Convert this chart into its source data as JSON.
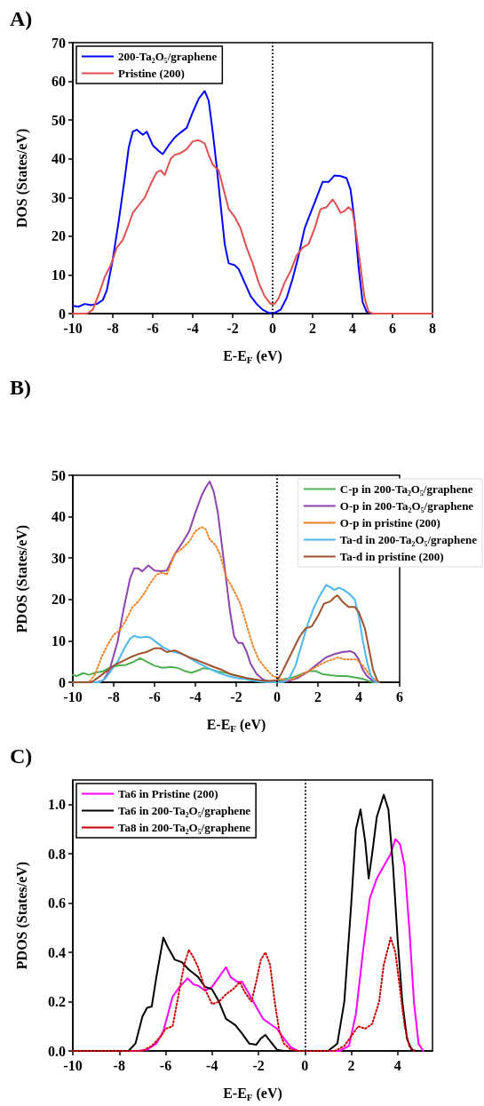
{
  "chart_data": [
    {
      "type": "line",
      "title": "A)",
      "xlabel": "E-E$_{F}$ (eV)",
      "ylabel": "DOS (States/eV)",
      "xlim": [
        -10,
        8
      ],
      "xticks": [
        -10,
        -8,
        -6,
        -4,
        -2,
        0,
        2,
        4,
        6,
        8
      ],
      "ylim": [
        0,
        70
      ],
      "yticks": [
        0,
        10,
        20,
        30,
        40,
        50,
        60,
        70
      ],
      "grid": false,
      "legend": "top left",
      "marker": "none",
      "ref_lines": [
        {
          "axis": "x",
          "value": 0,
          "color": "#000000",
          "line_style": "dotted"
        }
      ],
      "series": [
        {
          "name": "200-Ta₂O₅/graphene",
          "color": "#0000ff",
          "line_style": "solid",
          "x": [
            -10,
            -9.7,
            -9.4,
            -9.1,
            -8.8,
            -8.5,
            -8.3,
            -8,
            -7.7,
            -7.4,
            -7.2,
            -7,
            -6.8,
            -6.5,
            -6.3,
            -6,
            -5.7,
            -5.5,
            -5.2,
            -4.9,
            -4.6,
            -4.3,
            -4,
            -3.7,
            -3.4,
            -3.2,
            -3,
            -2.8,
            -2.6,
            -2.4,
            -2.2,
            -1.9,
            -1.7,
            -1.4,
            -1.1,
            -0.8,
            -0.5,
            -0.2,
            0.1,
            0.4,
            0.7,
            1,
            1.3,
            1.6,
            1.9,
            2.2,
            2.5,
            2.8,
            3.1,
            3.4,
            3.7,
            3.9,
            4.1,
            4.3,
            4.5,
            4.7,
            5,
            8
          ],
          "values": [
            2,
            1.8,
            2.5,
            2.2,
            2.5,
            3.5,
            6,
            14,
            24,
            35,
            43,
            47,
            47.5,
            46.2,
            47,
            43.5,
            42,
            41.2,
            43.5,
            45.5,
            46.8,
            48,
            52,
            55.5,
            57.5,
            55,
            47,
            38,
            28,
            18,
            13,
            12.5,
            11.5,
            8,
            4.5,
            2.5,
            1,
            0.2,
            0.2,
            1,
            4,
            9,
            15,
            22,
            26,
            30,
            34,
            34,
            35.7,
            35.5,
            35,
            32,
            24,
            12,
            3,
            0.5,
            0,
            0
          ]
        },
        {
          "name": "Pristine (200)",
          "color": "#e05050",
          "line_style": "solid",
          "x": [
            -10,
            -9.3,
            -9,
            -8.7,
            -8.4,
            -8.1,
            -7.8,
            -7.5,
            -7.2,
            -7,
            -6.7,
            -6.4,
            -6.1,
            -5.8,
            -5.6,
            -5.4,
            -5.1,
            -4.9,
            -4.6,
            -4.3,
            -4,
            -3.7,
            -3.4,
            -3.2,
            -3,
            -2.7,
            -2.5,
            -2.2,
            -1.9,
            -1.6,
            -1.3,
            -1,
            -0.7,
            -0.4,
            -0.1,
            0.1,
            0.3,
            0.6,
            0.9,
            1.2,
            1.5,
            1.8,
            2.1,
            2.4,
            2.7,
            3,
            3.2,
            3.4,
            3.6,
            3.8,
            4,
            4.2,
            4.4,
            4.6,
            4.8,
            5,
            8
          ],
          "values": [
            0,
            0,
            1,
            5,
            9.5,
            12.5,
            17,
            19,
            23,
            26,
            28,
            30,
            33.5,
            36.5,
            37,
            35.8,
            40,
            41,
            41.5,
            42.5,
            44.5,
            44.8,
            44,
            41,
            38.5,
            37,
            33,
            27,
            25,
            22,
            17,
            13,
            8,
            4.5,
            2.5,
            2.5,
            4,
            8,
            11,
            15,
            17,
            18,
            22,
            27,
            27.5,
            29.5,
            28,
            26,
            26.5,
            27.5,
            26.5,
            20,
            12,
            4,
            0.5,
            0,
            0
          ]
        }
      ]
    },
    {
      "type": "line",
      "title": "B)",
      "xlabel": "E-E$_{F}$ (eV)",
      "ylabel": "PDOS (States/eV)",
      "xlim": [
        -10,
        6
      ],
      "xticks": [
        -10,
        -8,
        -6,
        -4,
        -2,
        0,
        2,
        4,
        6
      ],
      "ylim": [
        0,
        50
      ],
      "yticks": [
        0,
        10,
        20,
        30,
        40,
        50
      ],
      "grid": false,
      "legend": "top right",
      "marker": "none",
      "ref_lines": [
        {
          "axis": "x",
          "value": 0,
          "color": "#000000",
          "line_style": "dotted"
        }
      ],
      "series": [
        {
          "name": "C-p in 200-Ta₂O₅/graphene",
          "color": "#4caf50",
          "line_style": "solid",
          "x": [
            -10,
            -9.8,
            -9.5,
            -9.2,
            -8.9,
            -8.5,
            -8.2,
            -7.8,
            -7.4,
            -7,
            -6.7,
            -6.4,
            -6,
            -5.6,
            -5.2,
            -4.9,
            -4.5,
            -4.2,
            -3.9,
            -3.6,
            -3.3,
            -2.9,
            -2.5,
            -2.1,
            -1.7,
            -1.3,
            -0.9,
            -0.5,
            0,
            0.4,
            0.8,
            1.2,
            1.6,
            1.9,
            2.2,
            2.6,
            3,
            3.4,
            3.8,
            4.2,
            4.5,
            4.7,
            5
          ],
          "values": [
            1.8,
            1.5,
            2.2,
            1.8,
            2.3,
            2.7,
            3.5,
            4,
            4.2,
            5,
            5.8,
            5,
            4,
            3.5,
            3.7,
            3.5,
            2.7,
            2.3,
            2.8,
            3.4,
            3.2,
            2.6,
            2.3,
            1.7,
            1.2,
            0.8,
            0.5,
            0.3,
            0.3,
            0.8,
            1.2,
            2,
            2.7,
            2.7,
            2,
            1.7,
            1.5,
            1.5,
            1.2,
            0.8,
            0.3,
            0,
            0
          ]
        },
        {
          "name": "O-p in 200-Ta₂O₅/graphene",
          "color": "#8e44ad",
          "line_style": "solid",
          "x": [
            -10,
            -8.8,
            -8.5,
            -8.2,
            -7.8,
            -7.5,
            -7.2,
            -7,
            -6.8,
            -6.6,
            -6.3,
            -6,
            -5.7,
            -5.4,
            -5.2,
            -5,
            -4.6,
            -4.3,
            -4,
            -3.7,
            -3.5,
            -3.3,
            -3.1,
            -2.9,
            -2.7,
            -2.5,
            -2.3,
            -2.1,
            -1.9,
            -1.7,
            -1.5,
            -1.3,
            -1,
            -0.7,
            -0.4,
            0,
            0.5,
            1,
            1.5,
            2,
            2.4,
            2.8,
            3.2,
            3.6,
            3.8,
            4,
            4.2,
            4.4,
            4.7,
            5
          ],
          "values": [
            0,
            0,
            0.5,
            3,
            10,
            18,
            25,
            27.5,
            27.5,
            26.8,
            28.2,
            27,
            26.8,
            27,
            29,
            31,
            34,
            36.5,
            41,
            45,
            47,
            48.5,
            46,
            41,
            33,
            25,
            17,
            11,
            9.5,
            9.5,
            7.5,
            4.5,
            2,
            0.7,
            0.1,
            0.1,
            0.2,
            1,
            2.5,
            4.5,
            6,
            6.8,
            7.3,
            7.5,
            7,
            5.5,
            3,
            1.5,
            0.3,
            0
          ]
        },
        {
          "name": "O-p in pristine (200)",
          "color": "#f08020",
          "line_style": "dotted",
          "x": [
            -10,
            -9.2,
            -8.9,
            -8.6,
            -8.3,
            -8,
            -7.7,
            -7.4,
            -7.1,
            -6.8,
            -6.5,
            -6.2,
            -5.9,
            -5.6,
            -5.4,
            -5.2,
            -5,
            -4.6,
            -4.3,
            -4,
            -3.7,
            -3.5,
            -3.3,
            -3,
            -2.8,
            -2.5,
            -2.2,
            -1.8,
            -1.5,
            -1.2,
            -0.9,
            -0.5,
            -0.2,
            0.2,
            0.5,
            0.8,
            1.2,
            1.6,
            2,
            2.4,
            2.7,
            3,
            3.3,
            3.6,
            3.9,
            4.2,
            4.5,
            4.8,
            5
          ],
          "values": [
            0,
            0,
            2,
            6,
            9,
            11.5,
            12.5,
            15,
            18,
            19.5,
            21.5,
            24,
            26,
            26.5,
            26,
            28.5,
            31,
            32.5,
            34,
            36.5,
            37.5,
            37,
            34.5,
            33,
            31,
            25.5,
            23,
            19,
            14,
            9,
            5.5,
            3,
            1.5,
            0.8,
            0.5,
            0.8,
            1.8,
            2.8,
            4,
            5,
            5.5,
            6,
            5.5,
            5.5,
            5.5,
            4,
            2,
            0.5,
            0
          ]
        },
        {
          "name": "Ta-d in 200-Ta₂O₅/graphene",
          "color": "#4db8f0",
          "line_style": "solid",
          "x": [
            -10,
            -8.7,
            -8.4,
            -8.1,
            -7.8,
            -7.5,
            -7.2,
            -7,
            -6.7,
            -6.4,
            -6.2,
            -6,
            -5.6,
            -5.2,
            -4.8,
            -4.4,
            -4,
            -3.6,
            -3.2,
            -2.8,
            -2.4,
            -2,
            -1.6,
            -1.3,
            -0.9,
            -0.5,
            0.3,
            0.6,
            0.9,
            1.2,
            1.5,
            1.8,
            2.1,
            2.4,
            2.6,
            2.8,
            3,
            3.2,
            3.5,
            3.8,
            4,
            4.2,
            4.4,
            4.6,
            4.8,
            5
          ],
          "values": [
            0,
            0,
            1,
            3,
            5,
            8,
            10.5,
            11.2,
            10.8,
            11,
            10.8,
            10,
            8.5,
            7.5,
            7,
            6.3,
            5,
            4,
            3,
            2.2,
            1.5,
            1,
            0.8,
            0.5,
            0.2,
            0,
            0,
            1,
            4,
            9,
            14,
            18,
            21,
            23.5,
            23,
            22.3,
            22.8,
            22.5,
            21.5,
            20,
            16,
            10,
            5,
            1.5,
            0,
            0
          ]
        },
        {
          "name": "Ta-d in pristine (200)",
          "color": "#a0522d",
          "line_style": "solid",
          "x": [
            -10,
            -9.1,
            -8.8,
            -8.4,
            -8,
            -7.6,
            -7.2,
            -6.8,
            -6.4,
            -6,
            -5.7,
            -5.4,
            -5.2,
            -5,
            -4.7,
            -4.3,
            -3.9,
            -3.5,
            -3.1,
            -2.7,
            -2.3,
            -1.9,
            -1.5,
            -1.1,
            -0.7,
            -0.3,
            0,
            0.2,
            0.5,
            0.8,
            1.1,
            1.4,
            1.7,
            2,
            2.3,
            2.6,
            2.8,
            2.95,
            3.2,
            3.5,
            3.8,
            4,
            4.3,
            4.5,
            4.7,
            4.9,
            5
          ],
          "values": [
            0,
            0,
            1,
            2.5,
            4,
            5,
            6,
            6.8,
            7.3,
            8.2,
            8.2,
            7.3,
            7.5,
            7.7,
            7,
            6,
            5.3,
            4.5,
            3.7,
            3,
            2,
            1.5,
            1,
            0.7,
            0.4,
            0.3,
            0.5,
            2,
            5,
            8,
            11,
            13,
            13.5,
            16,
            19,
            19.5,
            20.5,
            21,
            19.5,
            18.2,
            18.2,
            17,
            13,
            8,
            3,
            0.5,
            0
          ]
        }
      ]
    },
    {
      "type": "line",
      "title": "C)",
      "xlabel": "E-E$_{F}$ (eV)",
      "ylabel": "PDOS (States/eV)",
      "xlim": [
        -10,
        5.5
      ],
      "xticks": [
        -10,
        -8,
        -6,
        -4,
        -2,
        0,
        2,
        4
      ],
      "ylim": [
        0,
        1.1
      ],
      "yticks": [
        {
          "value": 0,
          "label": "0.0"
        },
        {
          "value": 0.2,
          "label": "0.2"
        },
        {
          "value": 0.4,
          "label": "0.4"
        },
        {
          "value": 0.6,
          "label": "0.6"
        },
        {
          "value": 0.8,
          "label": "0.8"
        },
        {
          "value": 1,
          "label": "1.0"
        }
      ],
      "grid": false,
      "legend": "top left",
      "marker": "none",
      "ref_lines": [
        {
          "axis": "x",
          "value": 0,
          "color": "#000000",
          "line_style": "dotted"
        }
      ],
      "series": [
        {
          "name": "Ta6 in Pristine (200)",
          "color": "#ff00ff",
          "line_style": "solid",
          "x": [
            -10,
            -7.2,
            -6.8,
            -6.4,
            -6.1,
            -5.9,
            -5.7,
            -5.4,
            -5.2,
            -5.05,
            -4.8,
            -4.6,
            -4.3,
            -4,
            -3.7,
            -3.4,
            -3.2,
            -2.9,
            -2.7,
            -2.4,
            -2.1,
            -1.8,
            -1.5,
            -1.2,
            -0.9,
            -0.6,
            -0.3,
            1.5,
            1.9,
            2.2,
            2.5,
            2.8,
            3.1,
            3.4,
            3.7,
            3.9,
            4.1,
            4.3,
            4.5,
            4.7,
            4.9,
            5.1
          ],
          "values": [
            0,
            0,
            0.005,
            0.03,
            0.08,
            0.15,
            0.22,
            0.26,
            0.28,
            0.295,
            0.27,
            0.265,
            0.245,
            0.26,
            0.3,
            0.34,
            0.3,
            0.28,
            0.28,
            0.23,
            0.18,
            0.13,
            0.11,
            0.09,
            0.05,
            0.015,
            0,
            0,
            0.02,
            0.15,
            0.4,
            0.62,
            0.7,
            0.75,
            0.8,
            0.86,
            0.84,
            0.75,
            0.5,
            0.2,
            0.03,
            0
          ]
        },
        {
          "name": "Ta6 in 200-Ta₂O₅/graphene",
          "color": "#000000",
          "line_style": "solid",
          "x": [
            -10,
            -7.6,
            -7.3,
            -7,
            -6.8,
            -6.6,
            -6.4,
            -6.1,
            -5.9,
            -5.6,
            -5.3,
            -5,
            -4.6,
            -4.3,
            -4,
            -3.7,
            -3.4,
            -3,
            -2.7,
            -2.4,
            -2.1,
            -1.9,
            -1.7,
            -1.5,
            -1.2,
            -0.9,
            1,
            1.4,
            1.7,
            2,
            2.2,
            2.4,
            2.6,
            2.75,
            2.9,
            3.1,
            3.4,
            3.6,
            3.8,
            4,
            4.2,
            4.4,
            4.6,
            4.8
          ],
          "values": [
            0,
            0,
            0.03,
            0.14,
            0.175,
            0.18,
            0.3,
            0.46,
            0.42,
            0.37,
            0.36,
            0.33,
            0.3,
            0.26,
            0.25,
            0.2,
            0.13,
            0.105,
            0.07,
            0.03,
            0.025,
            0.05,
            0.065,
            0.04,
            0.005,
            0,
            0,
            0.03,
            0.2,
            0.6,
            0.9,
            0.98,
            0.85,
            0.7,
            0.8,
            0.95,
            1.04,
            0.98,
            0.75,
            0.45,
            0.2,
            0.05,
            0.005,
            0
          ]
        },
        {
          "name": "Ta8 in 200-Ta₂O₅/graphene",
          "color": "#cc0000",
          "line_style": "dotted",
          "x": [
            -10,
            -7,
            -6.6,
            -6.2,
            -6,
            -5.7,
            -5.4,
            -5.2,
            -5,
            -4.8,
            -4.6,
            -4.3,
            -4,
            -3.7,
            -3.4,
            -3.1,
            -2.8,
            -2.6,
            -2.3,
            -2.1,
            -1.9,
            -1.7,
            -1.5,
            -1.3,
            -1.1,
            -0.9,
            -0.6,
            -0.3,
            1.3,
            1.7,
            2,
            2.3,
            2.6,
            2.9,
            3.2,
            3.4,
            3.7,
            3.9,
            4.1,
            4.3,
            4.5,
            4.7
          ],
          "values": [
            0,
            0,
            0.02,
            0.06,
            0.09,
            0.1,
            0.25,
            0.35,
            0.41,
            0.38,
            0.34,
            0.25,
            0.19,
            0.2,
            0.23,
            0.25,
            0.28,
            0.24,
            0.2,
            0.28,
            0.37,
            0.4,
            0.35,
            0.2,
            0.08,
            0.03,
            0.005,
            0,
            0,
            0.02,
            0.06,
            0.1,
            0.09,
            0.11,
            0.2,
            0.35,
            0.46,
            0.4,
            0.25,
            0.1,
            0.02,
            0
          ]
        }
      ]
    }
  ]
}
